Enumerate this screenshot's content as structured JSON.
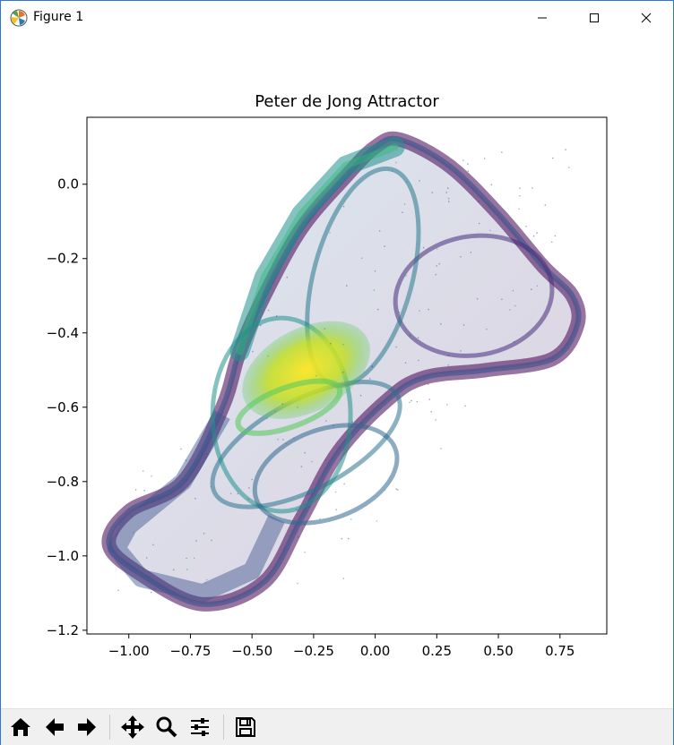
{
  "window": {
    "title": "Figure 1",
    "icons": [
      "matplotlib-logo-icon",
      "minimize-icon",
      "maximize-icon",
      "close-icon"
    ]
  },
  "toolbar": {
    "buttons": [
      {
        "name": "home-icon",
        "tooltip": "Home"
      },
      {
        "name": "back-icon",
        "tooltip": "Back"
      },
      {
        "name": "forward-icon",
        "tooltip": "Forward"
      },
      {
        "name": "pan-icon",
        "tooltip": "Pan"
      },
      {
        "name": "zoom-icon",
        "tooltip": "Zoom"
      },
      {
        "name": "configure-subplots-icon",
        "tooltip": "Configure subplots"
      },
      {
        "name": "save-icon",
        "tooltip": "Save"
      }
    ]
  },
  "chart_data": {
    "type": "scatter",
    "title": "Peter de Jong Attractor",
    "xlabel": "",
    "ylabel": "",
    "xlim": [
      -1.17,
      0.94
    ],
    "ylim": [
      -1.21,
      0.18
    ],
    "xticks": [
      -1.0,
      -0.75,
      -0.5,
      -0.25,
      0.0,
      0.25,
      0.5,
      0.75
    ],
    "xtick_labels": [
      "−1.00",
      "−0.75",
      "−0.50",
      "−0.25",
      "0.00",
      "0.25",
      "0.50",
      "0.75"
    ],
    "yticks": [
      0.0,
      -0.2,
      -0.4,
      -0.6,
      -0.8,
      -1.0,
      -1.2
    ],
    "ytick_labels": [
      "0.0",
      "−0.2",
      "−0.4",
      "−0.6",
      "−0.8",
      "−1.0",
      "−1.2"
    ],
    "grid": false,
    "legend": "none",
    "colormap": "viridis",
    "colors": {
      "low": "#440154",
      "mid_low": "#3b528b",
      "mid": "#21918c",
      "mid_high": "#5ec962",
      "high": "#fde725"
    },
    "series": [
      {
        "points_xy": [
          [
            0.1,
            0.12
          ],
          [
            0.3,
            0.05
          ],
          [
            0.5,
            -0.08
          ],
          [
            0.68,
            -0.22
          ],
          [
            0.8,
            -0.3
          ],
          [
            0.82,
            -0.38
          ],
          [
            0.72,
            -0.47
          ],
          [
            0.45,
            -0.5
          ],
          [
            0.2,
            -0.52
          ],
          [
            0.05,
            -0.58
          ],
          [
            -0.15,
            -0.72
          ],
          [
            -0.3,
            -0.9
          ],
          [
            -0.45,
            -1.07
          ],
          [
            -0.7,
            -1.13
          ],
          [
            -0.95,
            -1.05
          ],
          [
            -1.08,
            -0.97
          ],
          [
            -1.0,
            -0.88
          ],
          [
            -0.78,
            -0.8
          ],
          [
            -0.62,
            -0.6
          ],
          [
            -0.55,
            -0.45
          ],
          [
            -0.45,
            -0.3
          ],
          [
            -0.3,
            -0.12
          ],
          [
            -0.12,
            0.02
          ],
          [
            0.0,
            0.1
          ]
        ]
      }
    ]
  }
}
